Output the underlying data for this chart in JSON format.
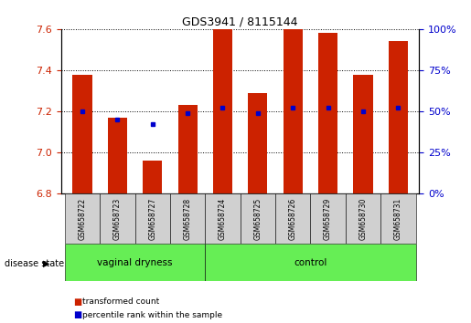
{
  "title": "GDS3941 / 8115144",
  "samples": [
    "GSM658722",
    "GSM658723",
    "GSM658727",
    "GSM658728",
    "GSM658724",
    "GSM658725",
    "GSM658726",
    "GSM658729",
    "GSM658730",
    "GSM658731"
  ],
  "red_values": [
    7.38,
    7.17,
    6.96,
    7.23,
    7.6,
    7.29,
    7.6,
    7.58,
    7.38,
    7.54
  ],
  "blue_values": [
    7.2,
    7.16,
    7.14,
    7.19,
    7.22,
    7.19,
    7.22,
    7.22,
    7.2,
    7.22
  ],
  "ylim_left": [
    6.8,
    7.6
  ],
  "yticks_left": [
    6.8,
    7.0,
    7.2,
    7.4,
    7.6
  ],
  "yticks_right": [
    0,
    25,
    50,
    75,
    100
  ],
  "bar_color": "#cc2200",
  "dot_color": "#0000cc",
  "group1_label": "vaginal dryness",
  "group2_label": "control",
  "group1_count": 4,
  "group2_count": 6,
  "disease_state_label": "disease state",
  "legend1": "transformed count",
  "legend2": "percentile rank within the sample",
  "tick_label_color_left": "#cc2200",
  "tick_label_color_right": "#0000cc",
  "bar_width": 0.55,
  "base_value": 6.8,
  "sample_box_color": "#d0d0d0",
  "group_box_color": "#66ee55"
}
